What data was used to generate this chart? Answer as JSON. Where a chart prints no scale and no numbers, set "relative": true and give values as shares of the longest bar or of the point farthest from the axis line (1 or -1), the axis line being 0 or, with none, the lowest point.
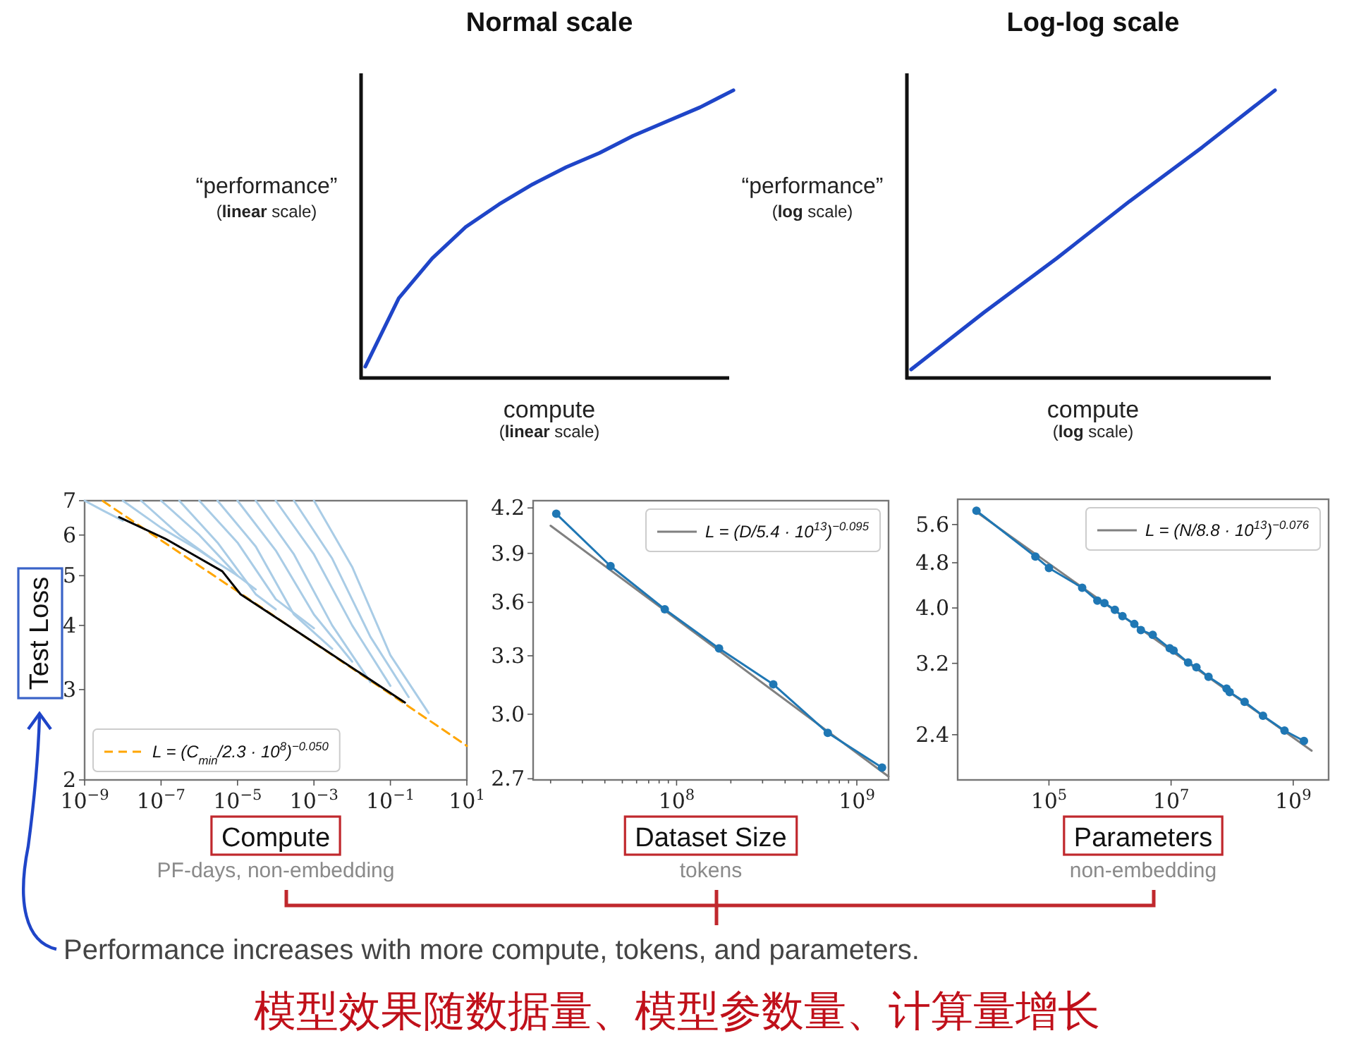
{
  "chart_data": [
    {
      "type": "line",
      "title": "Normal scale",
      "ylabel": "“performance”\n(linear scale)",
      "xlabel": "compute\n(linear scale)",
      "relative": true,
      "legend": false,
      "categories": [
        null,
        null,
        null,
        null,
        null,
        null,
        null,
        null,
        null,
        null,
        null,
        null
      ],
      "series": [
        {
          "color": "#1f45c8",
          "values": [
            0.03,
            0.27,
            0.41,
            0.52,
            0.6,
            0.67,
            0.73,
            0.78,
            0.84,
            0.89,
            0.94,
            1.0
          ]
        }
      ]
    },
    {
      "type": "line",
      "title": "Log-log scale",
      "ylabel": "“performance”\n(log scale)",
      "xlabel": "compute\n(log scale)",
      "relative": true,
      "legend": false,
      "categories": [
        null,
        null,
        null,
        null,
        null,
        null
      ],
      "series": [
        {
          "color": "#1f45c8",
          "values": [
            0.02,
            0.22,
            0.41,
            0.61,
            0.8,
            1.0
          ]
        }
      ]
    },
    {
      "type": "line",
      "ylabel": "Test Loss",
      "xlabel": "Compute\nPF-days, non-embedding",
      "log": "xy",
      "legend": "bottom left",
      "xlim": [
        1e-09,
        10
      ],
      "ylim": [
        2,
        7
      ],
      "xticks": [
        {
          "value": 1e-09,
          "label": "10$^{−9}$"
        },
        {
          "value": 1e-07,
          "label": "10$^{−7}$"
        },
        {
          "value": 1e-05,
          "label": "10$^{−5}$"
        },
        {
          "value": 0.001,
          "label": "10$^{−3}$"
        },
        {
          "value": 0.1,
          "label": "10$^{−1}$"
        },
        {
          "value": 10,
          "label": "10$^{1}$"
        }
      ],
      "yticks": [
        2,
        3,
        4,
        5,
        6,
        7
      ],
      "series": [
        {
          "color": "#a9cce6",
          "x": [
            1e-09,
            3e-09,
            1e-08
          ],
          "values": [
            7,
            6.7,
            6.4
          ]
        },
        {
          "color": "#a9cce6",
          "x": [
            1e-08,
            1e-07,
            1e-06,
            3e-06
          ],
          "values": [
            7,
            6.2,
            5.6,
            5.3
          ]
        },
        {
          "color": "#a9cce6",
          "x": [
            3e-08,
            3e-07,
            3e-06,
            1e-05
          ],
          "values": [
            7,
            6.0,
            5.3,
            5.0
          ]
        },
        {
          "color": "#a9cce6",
          "x": [
            1e-07,
            1e-06,
            1e-05,
            3e-05
          ],
          "values": [
            7,
            6.0,
            5.0,
            4.7
          ]
        },
        {
          "color": "#a9cce6",
          "x": [
            3e-07,
            3e-06,
            3e-05,
            0.0001
          ],
          "values": [
            7,
            5.8,
            4.6,
            4.3
          ]
        },
        {
          "color": "#a9cce6",
          "x": [
            1e-06,
            1e-05,
            0.0001,
            0.001
          ],
          "values": [
            7,
            5.8,
            4.5,
            3.95
          ]
        },
        {
          "color": "#a9cce6",
          "x": [
            3e-06,
            3e-05,
            0.0003,
            0.003
          ],
          "values": [
            7,
            5.7,
            4.2,
            3.6
          ]
        },
        {
          "color": "#a9cce6",
          "x": [
            1e-05,
            0.0001,
            0.001,
            0.01
          ],
          "values": [
            7,
            5.6,
            4.2,
            3.4
          ]
        },
        {
          "color": "#a9cce6",
          "x": [
            3e-05,
            0.0003,
            0.003,
            0.03
          ],
          "values": [
            7,
            5.5,
            4.0,
            3.1
          ]
        },
        {
          "color": "#a9cce6",
          "x": [
            0.0001,
            0.001,
            0.01,
            0.1
          ],
          "values": [
            7,
            5.5,
            4.0,
            3.05
          ]
        },
        {
          "color": "#a9cce6",
          "x": [
            0.0003,
            0.003,
            0.03,
            0.3
          ],
          "values": [
            7,
            5.4,
            3.8,
            2.9
          ]
        },
        {
          "color": "#a9cce6",
          "x": [
            0.001,
            0.01,
            0.1,
            1
          ],
          "values": [
            7,
            5.2,
            3.5,
            2.7
          ]
        },
        {
          "name": "L = (C$_{min}$/2.3 · 10$^{8}$)$^{−0.050}$",
          "color": "#ffa500",
          "line_style": "dashed",
          "x": [
            3e-09,
            1e-07,
            1e-05,
            0.001,
            0.1,
            10
          ],
          "values": [
            6.99,
            5.86,
            4.66,
            3.7,
            2.94,
            2.33
          ]
        },
        {
          "color": "#000000",
          "x": [
            8e-09,
            1.3e-07,
            4e-06,
            1.2e-05,
            0.00048,
            0.24
          ],
          "values": [
            6.5,
            5.9,
            5.1,
            4.6,
            3.84,
            2.83
          ]
        }
      ]
    },
    {
      "type": "line",
      "xlabel": "Dataset Size\ntokens",
      "log": "xy",
      "legend": "top right",
      "xlim": [
        16000000.0,
        1500000000.0
      ],
      "ylim": [
        2.695,
        4.25
      ],
      "xticks": [
        {
          "value": 20000000.0,
          "label": null
        },
        {
          "value": 30000000.0,
          "label": null
        },
        {
          "value": 40000000.0,
          "label": null
        },
        {
          "value": 50000000.0,
          "label": null
        },
        {
          "value": 60000000.0,
          "label": null
        },
        {
          "value": 70000000.0,
          "label": null
        },
        {
          "value": 80000000.0,
          "label": null
        },
        {
          "value": 90000000.0,
          "label": null
        },
        {
          "value": 100000000.0,
          "label": "10$^{8}$"
        },
        {
          "value": 200000000.0,
          "label": null
        },
        {
          "value": 300000000.0,
          "label": null
        },
        {
          "value": 400000000.0,
          "label": null
        },
        {
          "value": 500000000.0,
          "label": null
        },
        {
          "value": 600000000.0,
          "label": null
        },
        {
          "value": 700000000.0,
          "label": null
        },
        {
          "value": 800000000.0,
          "label": null
        },
        {
          "value": 900000000.0,
          "label": null
        },
        {
          "value": 1000000000.0,
          "label": "10$^{9}$"
        }
      ],
      "yticks": [
        4.2,
        3.9,
        3.6,
        3.3,
        {
          "value": 3,
          "label": "3.0"
        },
        2.7
      ],
      "series": [
        {
          "name": "L = (D/5.4 · 10$^{13}$)$^{−0.095}$",
          "color": "#808080",
          "x": [
            20000000.0,
            1500000000.0
          ],
          "values": [
            4.08,
            2.71
          ]
        },
        {
          "color": "#1f77b4",
          "marker": "circle",
          "x": [
            21500000.0,
            43000000.0,
            86000000.0,
            172000000.0,
            344000000.0,
            690000000.0,
            1380000000.0
          ],
          "values": [
            4.16,
            3.82,
            3.56,
            3.34,
            3.15,
            2.91,
            2.75
          ]
        }
      ]
    },
    {
      "type": "line",
      "xlabel": "Parameters\nnon-embedding",
      "log": "xy",
      "legend": "top right",
      "xlim": [
        3200.0,
        3800000000.0
      ],
      "ylim": [
        2.0,
        6.2
      ],
      "xticks": [
        {
          "value": 100000.0,
          "label": "10$^{5}$"
        },
        {
          "value": 10000000.0,
          "label": "10$^{7}$"
        },
        {
          "value": 1000000000.0,
          "label": "10$^{9}$"
        }
      ],
      "yticks": [
        5.6,
        4.8,
        {
          "value": 4,
          "label": "4.0"
        },
        3.2,
        2.4
      ],
      "series": [
        {
          "name": "L = (N/8.8 · 10$^{13}$)$^{−0.076}$",
          "color": "#808080",
          "x": [
            6500.0,
            2000000000.0
          ],
          "values": [
            5.89,
            2.25
          ]
        },
        {
          "color": "#1f77b4",
          "marker": "circle",
          "x": [
            6500.0,
            60000.0,
            100000.0,
            350000.0,
            620000.0,
            810000.0,
            1200000.0,
            1600000.0,
            2500000.0,
            3200000.0,
            5000000.0,
            9500000.0,
            11000000.0,
            19000000.0,
            26000000.0,
            41000000.0,
            81000000.0,
            91000000.0,
            160000000.0,
            320000000.0,
            720000000.0,
            1500000000.0
          ],
          "values": [
            5.92,
            4.92,
            4.7,
            4.34,
            4.12,
            4.08,
            3.97,
            3.87,
            3.75,
            3.66,
            3.59,
            3.4,
            3.37,
            3.21,
            3.15,
            3.03,
            2.89,
            2.85,
            2.74,
            2.59,
            2.44,
            2.34
          ]
        }
      ],
      "annotations": [
        "Performance increases with more compute, tokens, and parameters.",
        "模型效果随数据量、模型参数量、计算量增长"
      ]
    }
  ]
}
